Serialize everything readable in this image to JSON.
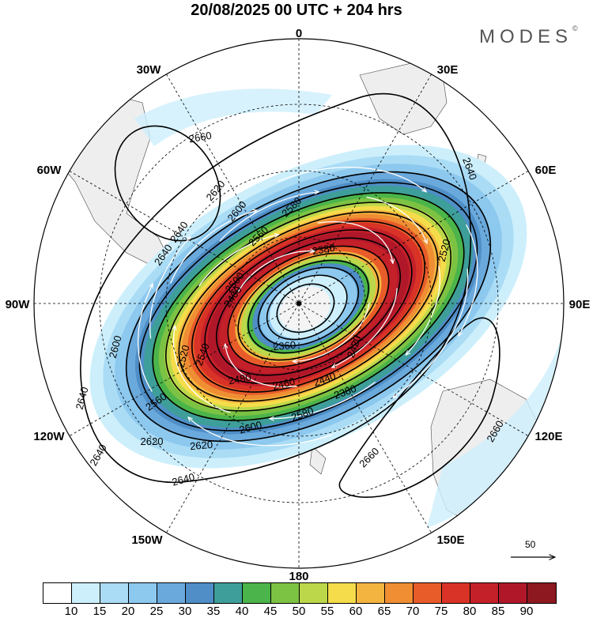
{
  "title": "20/08/2025  00 UTC  + 204 hrs",
  "logo": "MODES",
  "logo_mark": "©",
  "longitude_labels": [
    "0",
    "30E",
    "60E",
    "90E",
    "120E",
    "150E",
    "180",
    "150W",
    "120W",
    "90W",
    "60W",
    "30W"
  ],
  "contour_labels": [
    "2660",
    "2640",
    "2620",
    "2600",
    "2580",
    "2560",
    "2540",
    "2520",
    "2500",
    "2480",
    "2460",
    "2440",
    "2420",
    "2400",
    "2380",
    "2360",
    "2380",
    "2640",
    "2660",
    "2640",
    "2620",
    "2600",
    "2560",
    "2580",
    "2640",
    "2660",
    "2600",
    "2620",
    "2640",
    "2520",
    "2640"
  ],
  "colorbar": {
    "colors": [
      "#ffffff",
      "#cdeffc",
      "#aadcf5",
      "#8dc8ee",
      "#6aa9dc",
      "#4f8ec6",
      "#3e9e9a",
      "#4bb44a",
      "#7cc243",
      "#bcd84a",
      "#f4dc4a",
      "#f4b440",
      "#ef8e33",
      "#e85c2a",
      "#d83326",
      "#c4202a",
      "#b0182a",
      "#8e1820"
    ],
    "tick_labels": [
      "10",
      "15",
      "20",
      "25",
      "30",
      "35",
      "40",
      "45",
      "50",
      "55",
      "60",
      "65",
      "70",
      "75",
      "80",
      "85",
      "90"
    ]
  },
  "reference_vector_label": "50"
}
